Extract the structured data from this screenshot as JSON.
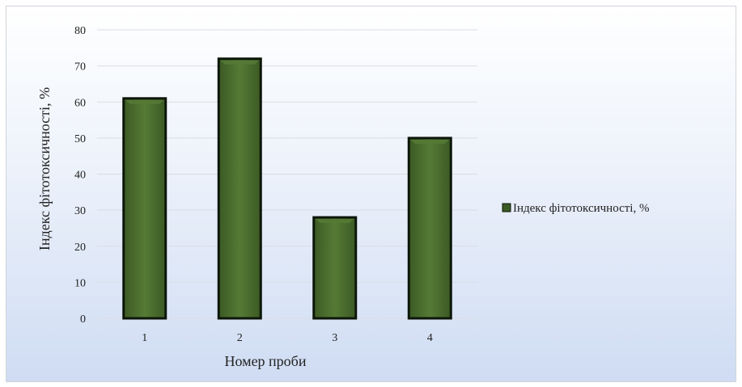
{
  "chart_data": {
    "type": "bar",
    "categories": [
      "1",
      "2",
      "3",
      "4"
    ],
    "series": [
      {
        "name": "Індекс фітотоксичності, %",
        "values": [
          61,
          72,
          28,
          50
        ]
      }
    ],
    "title": "",
    "xlabel": "Номер проби",
    "ylabel": "Індекс фітотоксичності, %",
    "ylim": [
      0,
      80
    ],
    "yticks": [
      "0",
      "10",
      "20",
      "30",
      "40",
      "50",
      "60",
      "70",
      "80"
    ],
    "grid": true,
    "legend_position": "right"
  },
  "colors": {
    "bar_fill": "#3b5a24",
    "bar_highlight": "#557a35",
    "bar_outline": "#0d160a",
    "gridline": "#d9dde3"
  }
}
